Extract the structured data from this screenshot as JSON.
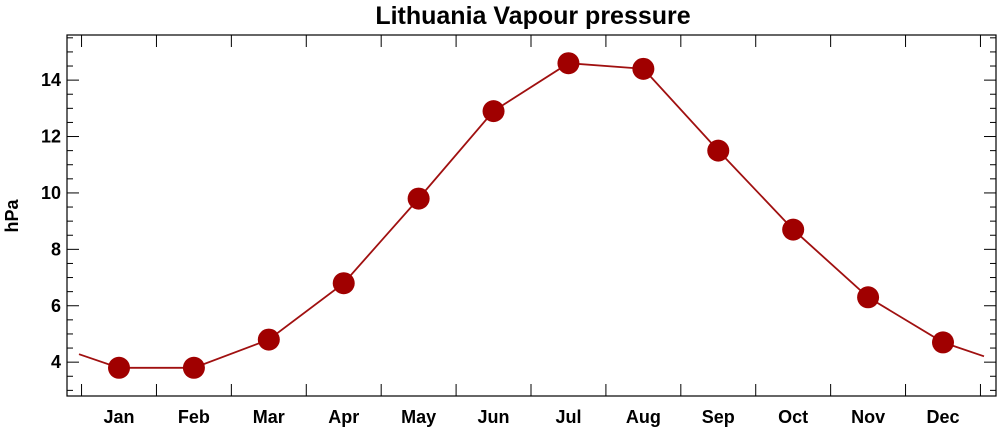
{
  "chart_data": {
    "type": "line",
    "title": "Lithuania Vapour pressure",
    "xlabel": "",
    "ylabel": "hPa",
    "categories": [
      "Jan",
      "Feb",
      "Mar",
      "Apr",
      "May",
      "Jun",
      "Jul",
      "Aug",
      "Sep",
      "Oct",
      "Nov",
      "Dec"
    ],
    "series": [
      {
        "values": [
          3.8,
          3.8,
          4.8,
          6.8,
          9.8,
          12.9,
          14.6,
          14.4,
          11.5,
          8.7,
          6.3,
          4.7
        ]
      }
    ],
    "ylim": [
      2.8,
      15.6
    ],
    "yticks": [
      4,
      6,
      8,
      10,
      12,
      14
    ],
    "ytick_labels": [
      "4",
      "6",
      "8",
      "10",
      "12",
      "14"
    ],
    "grid": false,
    "colors": {
      "line": "#a01010",
      "marker": "#a00000"
    }
  }
}
